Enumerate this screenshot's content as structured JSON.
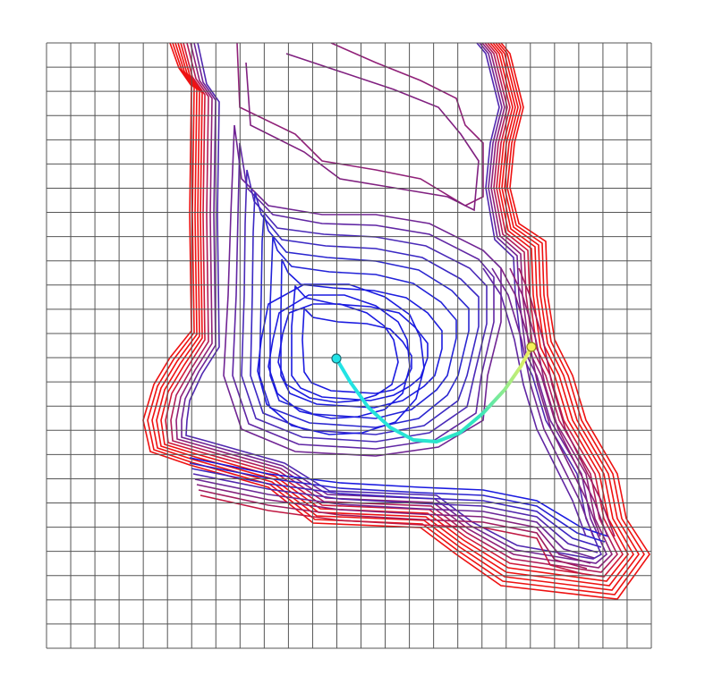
{
  "plot": {
    "grid": {
      "rows": 25,
      "cols": 25,
      "line_color": "#555555"
    },
    "colors": {
      "low": "#1a1adf",
      "high": "#ee1111",
      "path_start": "#22e3e6",
      "path_end": "#f5f05a",
      "start_marker": "#22e3e6",
      "end_marker": "#f5f05a"
    }
  }
}
